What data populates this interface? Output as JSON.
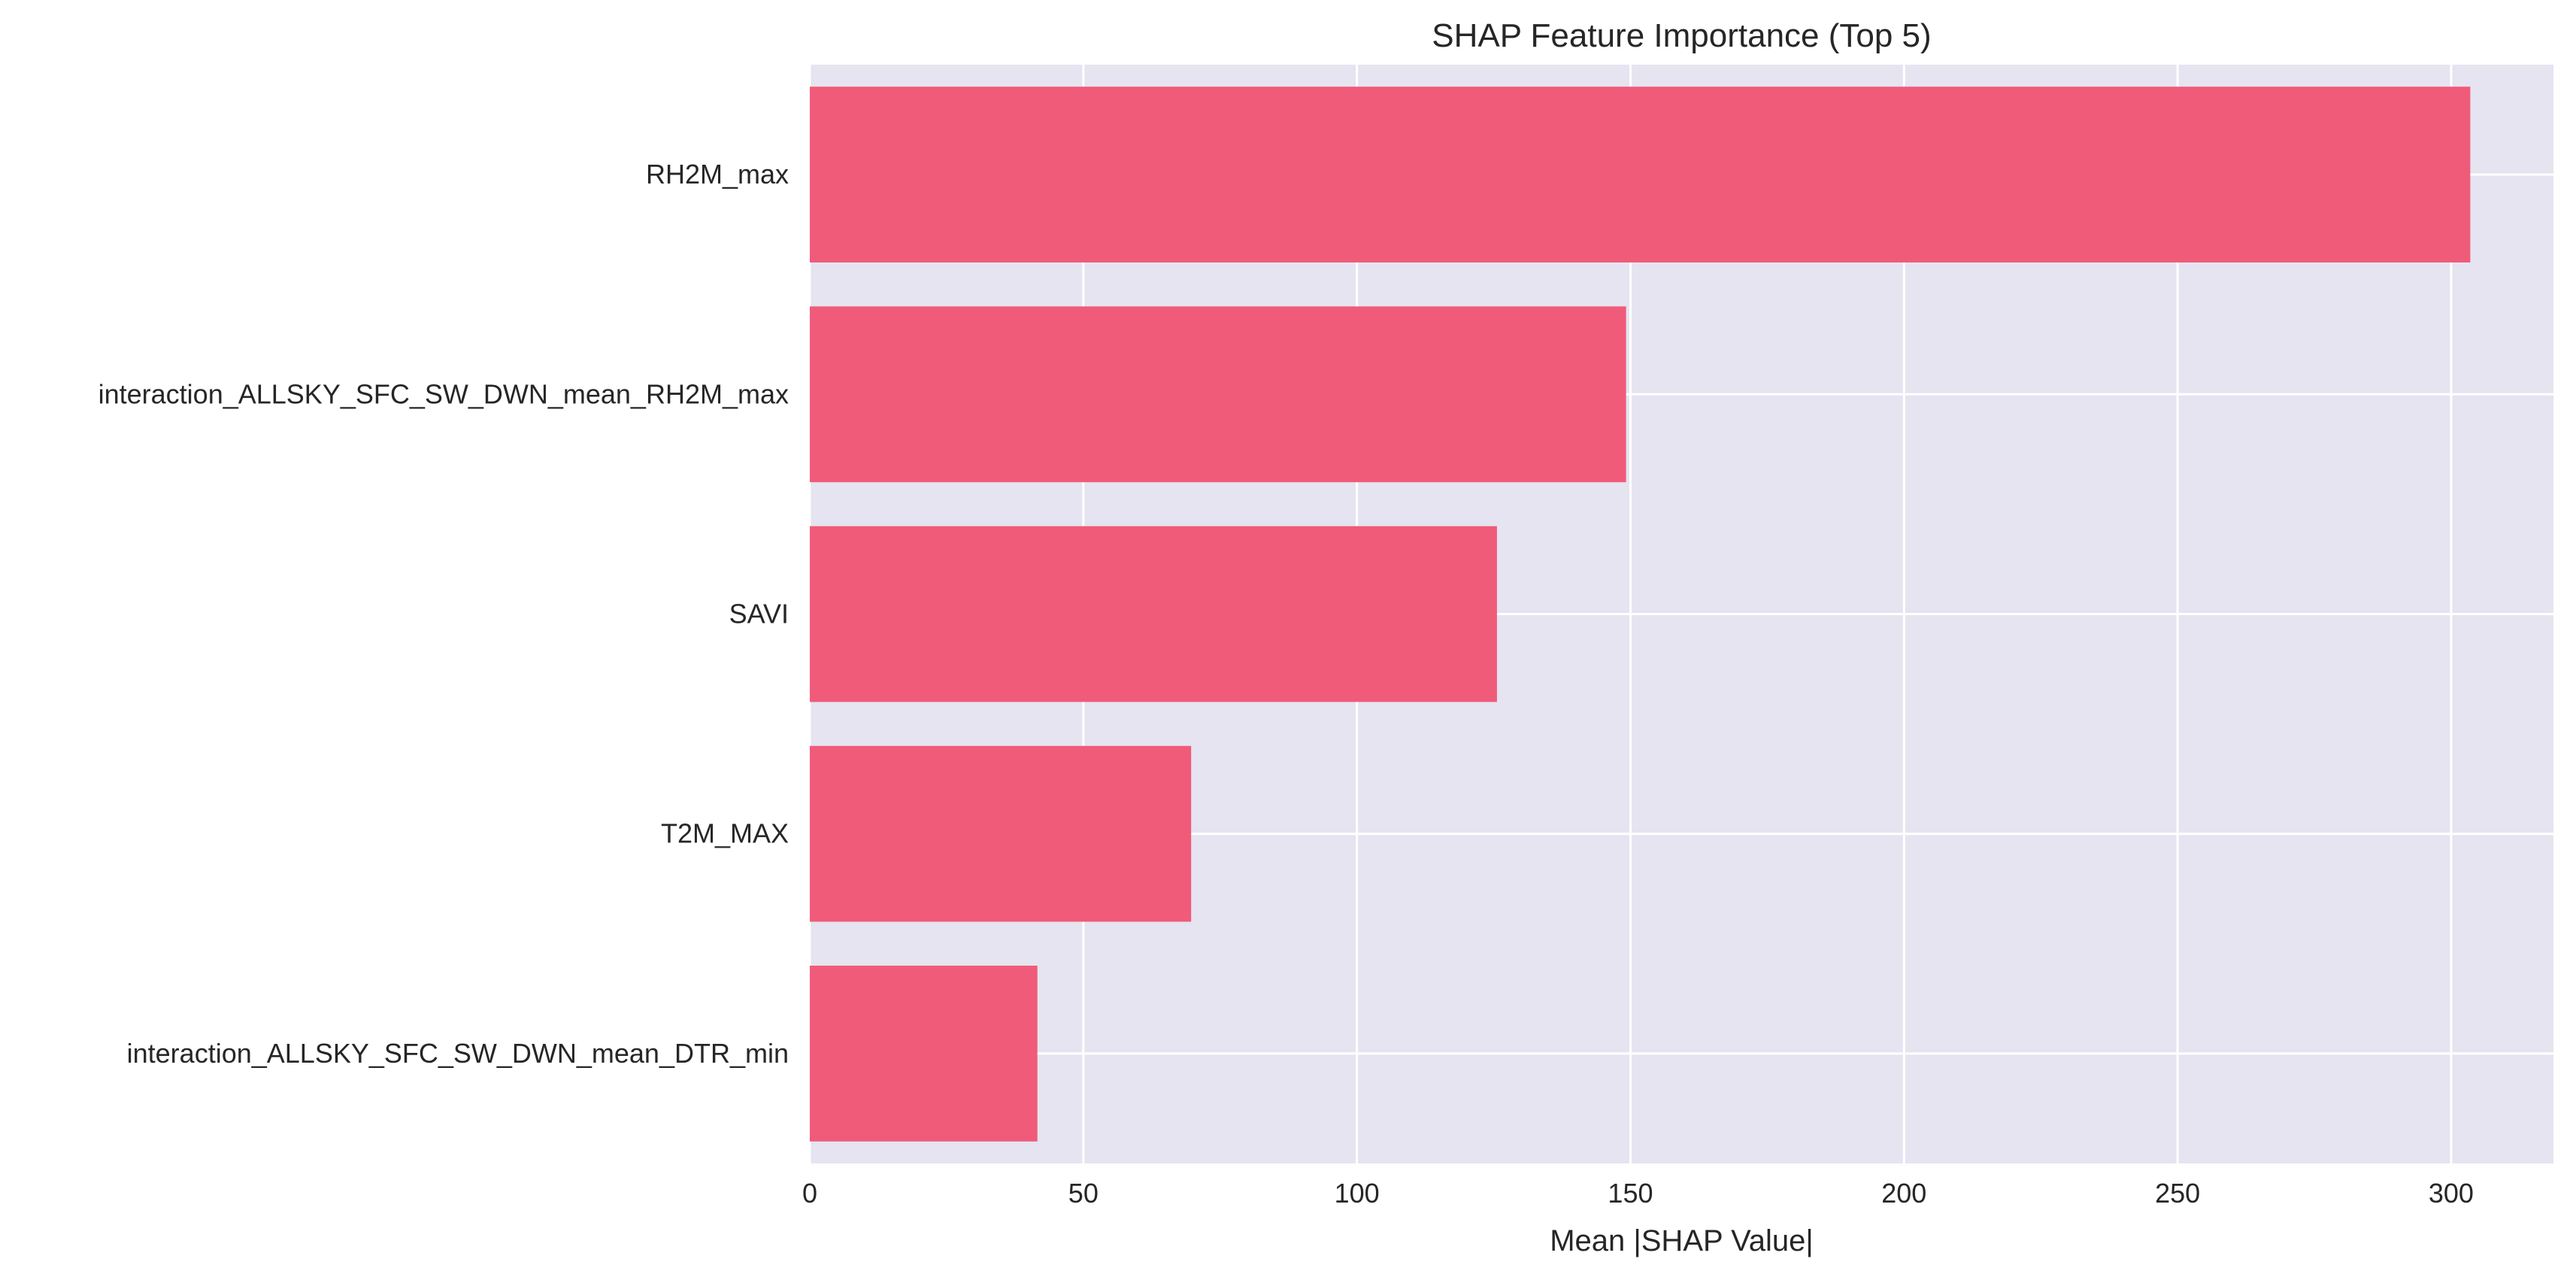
{
  "chart_data": {
    "type": "bar",
    "orientation": "horizontal",
    "title": "SHAP Feature Importance (Top 5)",
    "xlabel": "Mean |SHAP Value|",
    "ylabel": "",
    "categories": [
      "RH2M_max",
      "interaction_ALLSKY_SFC_SW_DWN_mean_RH2M_max",
      "SAVI",
      "T2M_MAX",
      "interaction_ALLSKY_SFC_SW_DWN_mean_DTR_min"
    ],
    "values": [
      303.5,
      149.2,
      125.6,
      69.7,
      41.6
    ],
    "xlim": [
      0,
      318.7
    ],
    "xticks": [
      0,
      50,
      100,
      150,
      200,
      250,
      300
    ],
    "grid": true,
    "bar_color": "#f05b79",
    "background_color": "#e5e4f0",
    "grid_color": "#ffffff"
  }
}
